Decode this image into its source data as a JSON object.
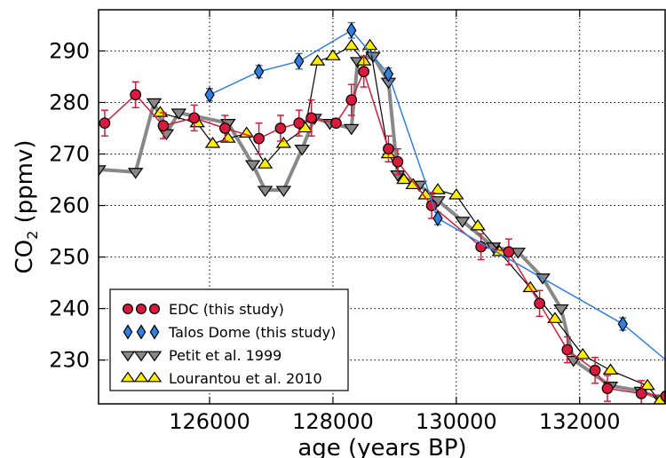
{
  "chart_data": {
    "type": "line",
    "xlabel": "age (years BP)",
    "ylabel": "CO",
    "ylabel_subscript": "2",
    "ylabel_suffix": " (ppmv)",
    "xlim": [
      124200,
      133400
    ],
    "ylim": [
      221.5,
      298
    ],
    "xticks": [
      126000,
      128000,
      130000,
      132000
    ],
    "yticks": [
      230,
      240,
      250,
      260,
      270,
      280,
      290
    ],
    "grid": true,
    "legend_position": "lower-left",
    "series": [
      {
        "name": "EDC (this study)",
        "marker": "circle",
        "color": "#d81b3c",
        "line_color": "#d81b3c",
        "line_width": 1.5,
        "error_bars": true,
        "x": [
          124000,
          124300,
          124800,
          125250,
          125750,
          126250,
          126800,
          127150,
          127450,
          127650,
          128050,
          128300,
          128500,
          128900,
          129050,
          129600,
          130400,
          130850,
          131350,
          131800,
          132250,
          132450,
          133000,
          133400
        ],
        "y": [
          274.5,
          276,
          281.5,
          275.5,
          277,
          275,
          273,
          275,
          276,
          277,
          276,
          280.5,
          286,
          271,
          268.5,
          260,
          252,
          251,
          241,
          232,
          228,
          224.5,
          223.5,
          223
        ],
        "err": [
          0,
          2.5,
          2.5,
          2.5,
          2.5,
          2.5,
          3,
          2.5,
          2.5,
          3.5,
          0,
          3,
          3,
          2.5,
          2.5,
          2.5,
          2.5,
          2.5,
          2.5,
          2.5,
          2.5,
          2.5,
          2.5,
          0
        ]
      },
      {
        "name": "Talos Dome (this study)",
        "marker": "diamond",
        "color": "#2f80e0",
        "line_color": "#2f80e0",
        "line_width": 1.5,
        "error_bars": true,
        "x": [
          126000,
          126800,
          127450,
          128300,
          128900,
          129700,
          132700,
          133500
        ],
        "y": [
          281.5,
          286,
          288,
          294,
          285.5,
          257.5,
          237,
          229
        ],
        "err": [
          1.2,
          1.2,
          1.5,
          1.5,
          1.2,
          1.2,
          1.2,
          0
        ]
      },
      {
        "name": "Petit et al. 1999",
        "marker": "triangle-down",
        "color": "#888888",
        "line_color": "#888888",
        "line_width": 4,
        "error_bars": false,
        "x": [
          124100,
          124200,
          124800,
          125100,
          125300,
          125500,
          126300,
          126700,
          126900,
          127200,
          127500,
          127700,
          127950,
          128300,
          128400,
          128650,
          128900,
          129050,
          129400,
          129700,
          130100,
          130600,
          131000,
          131400,
          131700,
          131900,
          132500,
          133000,
          133300
        ],
        "y": [
          270,
          267,
          266.5,
          280,
          274,
          278,
          276,
          268,
          263,
          263,
          271,
          277,
          276,
          275,
          288,
          289,
          284,
          266,
          264,
          261,
          257,
          252,
          251,
          246,
          240,
          230,
          225,
          224,
          222.5
        ]
      },
      {
        "name": "Lourantou et al. 2010",
        "marker": "triangle-up",
        "color": "#ffee00",
        "line_color": "#000000",
        "line_width": 1.2,
        "error_bars": false,
        "x": [
          125200,
          125800,
          126050,
          126300,
          126600,
          126900,
          127200,
          127550,
          127750,
          128000,
          128300,
          128500,
          128600,
          128900,
          129150,
          129300,
          129500,
          129700,
          130000,
          130350,
          130700,
          131200,
          131600,
          132050,
          132500,
          133100,
          133300
        ],
        "y": [
          278,
          276,
          272,
          273,
          274,
          268,
          272,
          275,
          288,
          289,
          291,
          288,
          291,
          270,
          265,
          264,
          262,
          263,
          262,
          256,
          251,
          244,
          238,
          231,
          228,
          225,
          222
        ]
      }
    ]
  }
}
